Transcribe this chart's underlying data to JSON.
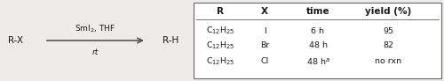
{
  "bg_color": "#eeece8",
  "reaction_left": "R-X",
  "reaction_right": "R-H",
  "arrow_label_top": "SmI$_2$, THF",
  "arrow_label_bottom": "rt",
  "table_headers": [
    "R",
    "X",
    "time",
    "yield (%)"
  ],
  "table_rows": [
    [
      "C$_{12}$H$_{25}$",
      "I",
      "6 h",
      "95"
    ],
    [
      "C$_{12}$H$_{25}$",
      "Br",
      "48 h",
      "82"
    ],
    [
      "C$_{12}$H$_{25}$",
      "Cl",
      "48 h$^a$",
      "no rxn"
    ]
  ],
  "font_size_reaction": 7.5,
  "font_size_table": 6.8,
  "font_size_header": 7.5,
  "font_size_arrow": 6.5
}
